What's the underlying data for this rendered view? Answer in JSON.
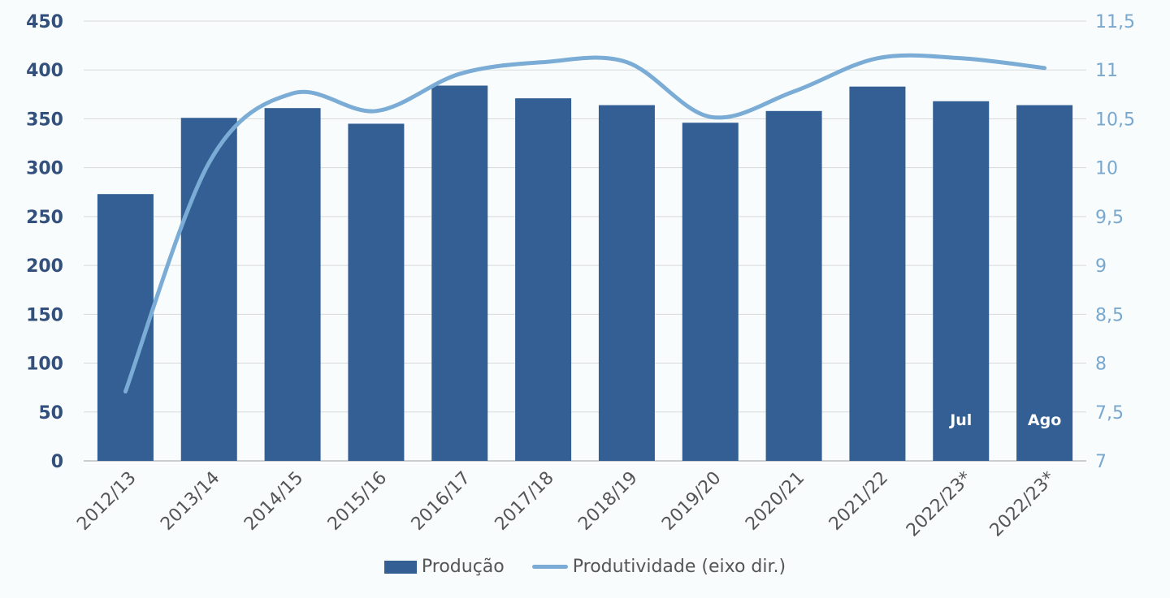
{
  "chart_data": {
    "type": "bar",
    "categories": [
      "2012/13",
      "2013/14",
      "2014/15",
      "2015/16",
      "2016/17",
      "2017/18",
      "2018/19",
      "2019/20",
      "2020/21",
      "2021/22",
      "2022/23*",
      "2022/23*"
    ],
    "series": [
      {
        "name": "Produção",
        "type": "bar",
        "axis": "left",
        "values": [
          273,
          351,
          361,
          345,
          384,
          371,
          364,
          346,
          358,
          383,
          368,
          364
        ]
      },
      {
        "name": "Produtividade (eixo dir.)",
        "type": "line",
        "axis": "right",
        "smooth": true,
        "values": [
          7.71,
          10.05,
          10.76,
          10.58,
          10.96,
          11.08,
          11.08,
          10.52,
          10.78,
          11.12,
          11.12,
          11.02
        ]
      }
    ],
    "bar_labels": [
      "",
      "",
      "",
      "",
      "",
      "",
      "",
      "",
      "",
      "",
      "Jul",
      "Ago"
    ],
    "y_left": {
      "min": 0,
      "max": 450,
      "ticks": [
        "0",
        "50",
        "100",
        "150",
        "200",
        "250",
        "300",
        "350",
        "400",
        "450"
      ]
    },
    "y_right": {
      "min": 7,
      "max": 11.5,
      "ticks": [
        "7",
        "7,5",
        "8",
        "8,5",
        "9",
        "9,5",
        "10",
        "10,5",
        "11",
        "11,5"
      ]
    },
    "grid": true,
    "legend_position": "bottom",
    "colors": {
      "bar": "#335f94",
      "line": "#7aacd6",
      "left_axis": "#33507c",
      "right_axis": "#79a8cf",
      "grid": "#d9d9d9"
    }
  },
  "legend": {
    "bar_label": "Produção",
    "line_label": "Produtividade (eixo dir.)"
  }
}
